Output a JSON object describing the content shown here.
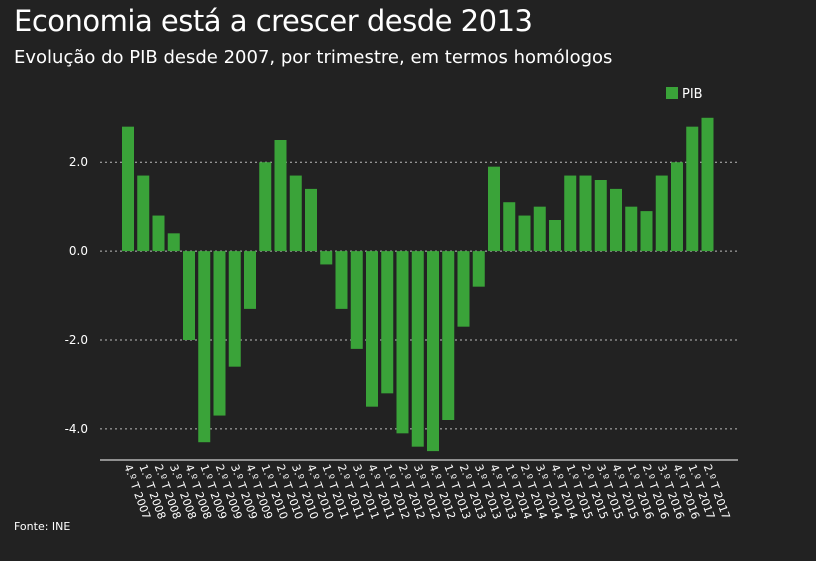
{
  "header": {
    "title": "Economia está a crescer desde 2013",
    "subtitle": "Evolução do PIB desde 2007, por trimestre, em termos homólogos"
  },
  "footer": {
    "source": "Fonte: INE"
  },
  "colors": {
    "bar": "#3aa339",
    "background": "#222222",
    "grid": "#bbbbbb",
    "text": "#ffffff"
  },
  "chart_data": {
    "type": "bar",
    "legend": {
      "position": "top-right",
      "entries": [
        "PIB"
      ]
    },
    "ylim": [
      -4.7,
      3.4
    ],
    "yticks": [
      2.0,
      0.0,
      -2.0,
      -4.0
    ],
    "ytick_labels": [
      "2.0",
      "0.0",
      "-2.0",
      "-4.0"
    ],
    "grid": true,
    "categories": [
      "4.º T 2007",
      "1.º T 2008",
      "2.º T 2008",
      "3.º T 2008",
      "4.º T 2008",
      "1.º T 2009",
      "2.º T 2009",
      "3.º T 2009",
      "4.º T 2009",
      "1.º T 2010",
      "2.º T 2010",
      "3.º T 2010",
      "4.º T 2010",
      "1.º T 2011",
      "2.º T 2011",
      "3.º T 2011",
      "4.º T 2011",
      "1.º T 2012",
      "2.º T 2012",
      "3.º T 2012",
      "4.º T 2012",
      "1.º T 2013",
      "2.º T 2013",
      "3.º T 2013",
      "4.º T 2013",
      "1.º T 2014",
      "2.º T 2014",
      "3.º T 2014",
      "4.º T 2014",
      "1.º T 2015",
      "2.º T 2015",
      "3.º T 2015",
      "4.º T 2015",
      "1.º T 2016",
      "2.º T 2016",
      "3.º T 2016",
      "4.º T 2016",
      "1.º T 2017",
      "2.º T 2017"
    ],
    "series": [
      {
        "name": "PIB",
        "values": [
          2.8,
          1.7,
          0.8,
          0.4,
          -2.0,
          -4.3,
          -3.7,
          -2.6,
          -1.3,
          2.0,
          2.5,
          1.7,
          1.4,
          -0.3,
          -1.3,
          -2.2,
          -3.5,
          -3.2,
          -4.1,
          -4.4,
          -4.5,
          -3.8,
          -1.7,
          -0.8,
          1.9,
          1.1,
          0.8,
          1.0,
          0.7,
          1.7,
          1.7,
          1.6,
          1.4,
          1.0,
          0.9,
          1.7,
          2.0,
          2.8,
          3.0
        ]
      }
    ]
  }
}
